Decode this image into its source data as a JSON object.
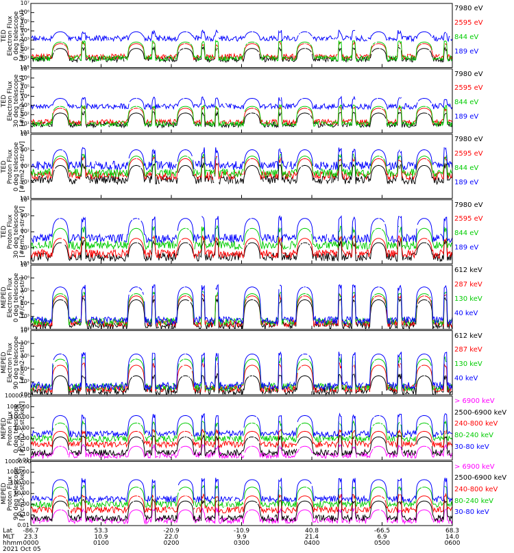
{
  "chart_data": {
    "type": "line",
    "time_axis": {
      "row_labels": [
        "Lat",
        "MLT",
        "hhmm"
      ],
      "ticks": [
        {
          "Lat": "-86.7",
          "MLT": "23.3",
          "hhmm": "0000"
        },
        {
          "Lat": "53.3",
          "MLT": "10.9",
          "hhmm": "0100"
        },
        {
          "Lat": "-20.9",
          "MLT": "22.0",
          "hhmm": "0200"
        },
        {
          "Lat": "-10.9",
          "MLT": "9.9",
          "hhmm": "0300"
        },
        {
          "Lat": "40.8",
          "MLT": "21.4",
          "hhmm": "0400"
        },
        {
          "Lat": "-66.5",
          "MLT": "6.9",
          "hhmm": "0500"
        },
        {
          "Lat": "68.3",
          "MLT": "14.0",
          "hhmm": "0600"
        }
      ],
      "date": "2021 Oct 05",
      "range_hours": [
        0,
        6
      ]
    },
    "panels": [
      {
        "ylabel": [
          "TED",
          "Electron Flux",
          "0 deg telescope",
          "[#/cm2-s-str-eV]"
        ],
        "yscale": "log",
        "yticks": [
          "10°",
          "10¹",
          "10²",
          "10³",
          "10⁴",
          "10⁵",
          "10⁶",
          "10⁷"
        ],
        "ylim": [
          1,
          10000000
        ],
        "series": [
          {
            "name": "7980 eV",
            "color": "#000000",
            "bg": 8,
            "pk": 120
          },
          {
            "name": "2595 eV",
            "color": "#ff0000",
            "bg": 15,
            "pk": 400
          },
          {
            "name": "844 eV",
            "color": "#00cc00",
            "bg": 10,
            "pk": 600
          },
          {
            "name": "189 eV",
            "color": "#0000ff",
            "bg": 1500,
            "pk": 8000
          }
        ]
      },
      {
        "ylabel": [
          "TED",
          "Electron Flux",
          "30 deg telescope",
          "[#/cm2-s-str-eV]"
        ],
        "yscale": "log",
        "yticks": [
          "10°",
          "10¹",
          "10²",
          "10³",
          "10⁴",
          "10⁵",
          "10⁶",
          "10⁷"
        ],
        "ylim": [
          1,
          10000000
        ],
        "series": [
          {
            "name": "7980 eV",
            "color": "#000000",
            "bg": 8,
            "pk": 150
          },
          {
            "name": "2595 eV",
            "color": "#ff0000",
            "bg": 15,
            "pk": 500
          },
          {
            "name": "844 eV",
            "color": "#00cc00",
            "bg": 10,
            "pk": 800
          },
          {
            "name": "189 eV",
            "color": "#0000ff",
            "bg": 800,
            "pk": 6000
          }
        ]
      },
      {
        "ylabel": [
          "TED",
          "Proton Flux",
          "0 deg telescope",
          "[#/cm2-s-str-eV]"
        ],
        "yscale": "log",
        "yticks": [
          "10°",
          "10¹",
          "10²",
          "10³",
          "10⁴"
        ],
        "ylim": [
          1,
          30000
        ],
        "series": [
          {
            "name": "7980 eV",
            "color": "#000000",
            "bg": 20,
            "pk": 200
          },
          {
            "name": "2595 eV",
            "color": "#ff0000",
            "bg": 40,
            "pk": 600
          },
          {
            "name": "844 eV",
            "color": "#00cc00",
            "bg": 60,
            "pk": 900
          },
          {
            "name": "189 eV",
            "color": "#0000ff",
            "bg": 200,
            "pk": 2500
          }
        ]
      },
      {
        "ylabel": [
          "TED",
          "Proton Flux",
          "30 deg telescope",
          "[#/cm2-s-str-eV]"
        ],
        "yscale": "log",
        "yticks": [
          "10°",
          "10¹",
          "10²",
          "10³",
          "10⁴"
        ],
        "ylim": [
          1,
          30000
        ],
        "series": [
          {
            "name": "7980 eV",
            "color": "#000000",
            "bg": 3,
            "pk": 30
          },
          {
            "name": "2595 eV",
            "color": "#ff0000",
            "bg": 5,
            "pk": 60
          },
          {
            "name": "844 eV",
            "color": "#00cc00",
            "bg": 20,
            "pk": 300
          },
          {
            "name": "189 eV",
            "color": "#0000ff",
            "bg": 60,
            "pk": 1500
          }
        ]
      },
      {
        "ylabel": [
          "MEPED",
          "Electron Flux",
          "0 deg telescope",
          "[#/cm2-s-str]"
        ],
        "yscale": "log",
        "yticks": [
          "10²",
          "10³",
          "10⁴",
          "10⁵",
          "10⁶",
          "10⁷"
        ],
        "ylim": [
          100,
          10000000
        ],
        "series": [
          {
            "name": "612 keV",
            "color": "#000000",
            "bg": 200,
            "pk": 20000
          },
          {
            "name": "287 keV",
            "color": "#ff0000",
            "bg": 300,
            "pk": 40000
          },
          {
            "name": "130 keV",
            "color": "#00cc00",
            "bg": 400,
            "pk": 60000
          },
          {
            "name": "40 keV",
            "color": "#0000ff",
            "bg": 500,
            "pk": 200000
          }
        ]
      },
      {
        "ylabel": [
          "MEPED",
          "Electron Flux",
          "90 deg telescope",
          "[#/cm2-s-str]"
        ],
        "yscale": "log",
        "yticks": [
          "10²",
          "10³",
          "10⁴",
          "10⁵",
          "10⁶",
          "10⁷"
        ],
        "ylim": [
          100,
          10000000
        ],
        "series": [
          {
            "name": "612 keV",
            "color": "#000000",
            "bg": 200,
            "pk": 3000
          },
          {
            "name": "287 keV",
            "color": "#ff0000",
            "bg": 300,
            "pk": 20000
          },
          {
            "name": "130 keV",
            "color": "#00cc00",
            "bg": 400,
            "pk": 60000
          },
          {
            "name": "40 keV",
            "color": "#0000ff",
            "bg": 500,
            "pk": 150000
          }
        ]
      },
      {
        "ylabel": [
          "MEPED",
          "Proton Flux",
          "0 deg telescope",
          "[#/cm2-s-str-keV]"
        ],
        "yscale": "log",
        "yticks": [
          "0.01",
          "0.10",
          "1.00",
          "10.00",
          "100.00",
          "1000.00",
          "10000.00"
        ],
        "ylim": [
          0.01,
          10000
        ],
        "series": [
          {
            "name": "> 6900 keV",
            "color": "#ff00ff",
            "bg": 0.03,
            "pk": 0.2
          },
          {
            "name": "2500-6900 keV",
            "color": "#000000",
            "bg": 0.05,
            "pk": 1.5
          },
          {
            "name": "240-800 keV",
            "color": "#ff0000",
            "bg": 0.3,
            "pk": 5
          },
          {
            "name": "80-240 keV",
            "color": "#00cc00",
            "bg": 1,
            "pk": 30
          },
          {
            "name": "30-80 keV",
            "color": "#0000ff",
            "bg": 3,
            "pk": 150
          }
        ]
      },
      {
        "ylabel": [
          "MEPED",
          "Proton Flux",
          "90 deg telescope",
          "[#/cm2-s-str-keV]"
        ],
        "yscale": "log",
        "yticks": [
          "0.01",
          "0.10",
          "1.00",
          "10.00",
          "100.00",
          "1000.00",
          "10000.00"
        ],
        "ylim": [
          0.01,
          10000
        ],
        "series": [
          {
            "name": "> 6900 keV",
            "color": "#ff00ff",
            "bg": 0.03,
            "pk": 0.3
          },
          {
            "name": "2500-6900 keV",
            "color": "#000000",
            "bg": 0.05,
            "pk": 2
          },
          {
            "name": "240-800 keV",
            "color": "#ff0000",
            "bg": 0.3,
            "pk": 6
          },
          {
            "name": "80-240 keV",
            "color": "#00cc00",
            "bg": 1,
            "pk": 40
          },
          {
            "name": "30-80 keV",
            "color": "#0000ff",
            "bg": 3,
            "pk": 200
          }
        ]
      }
    ],
    "bumps_hours": [
      0.42,
      1.5,
      2.2,
      3.15,
      3.9,
      4.95,
      5.6
    ],
    "spikes_hours": [
      0.75,
      1.75,
      2.45,
      2.65,
      3.55,
      4.4,
      4.6,
      5.25,
      5.9
    ]
  }
}
